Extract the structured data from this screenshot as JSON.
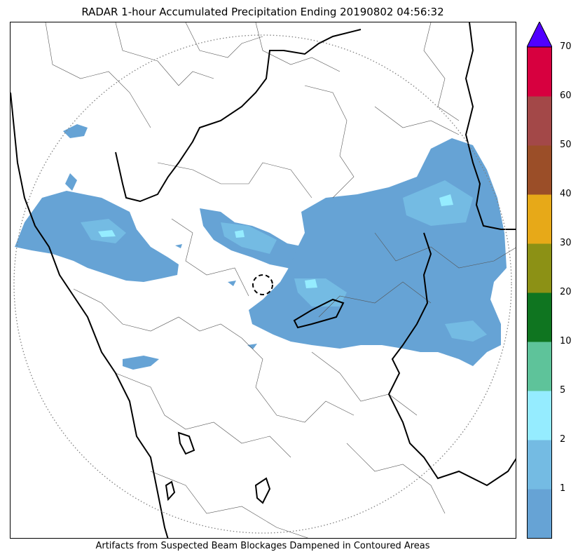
{
  "title": "RADAR 1-hour Accumulated Precipitation Ending 20190802 04:56:32",
  "caption": "Artifacts from Suspected Beam Blockages Dampened in Contoured Areas",
  "legend": {
    "levels": [
      "1",
      "2",
      "5",
      "10",
      "20",
      "30",
      "40",
      "50",
      "60",
      "70"
    ],
    "colors": [
      "#66a3d5",
      "#74bbe3",
      "#95ecff",
      "#5ec39a",
      "#0f7520",
      "#8c9115",
      "#e7a918",
      "#9b4e28",
      "#a34848",
      "#d7003f"
    ],
    "extend_color": "#5000ff"
  },
  "map": {
    "radar_range_ring": "dotted",
    "blockage_contour": "dashed",
    "precip_color_light": "#66a3d5",
    "precip_color_mid": "#74bbe3",
    "precip_color_heavy": "#95ecff"
  }
}
